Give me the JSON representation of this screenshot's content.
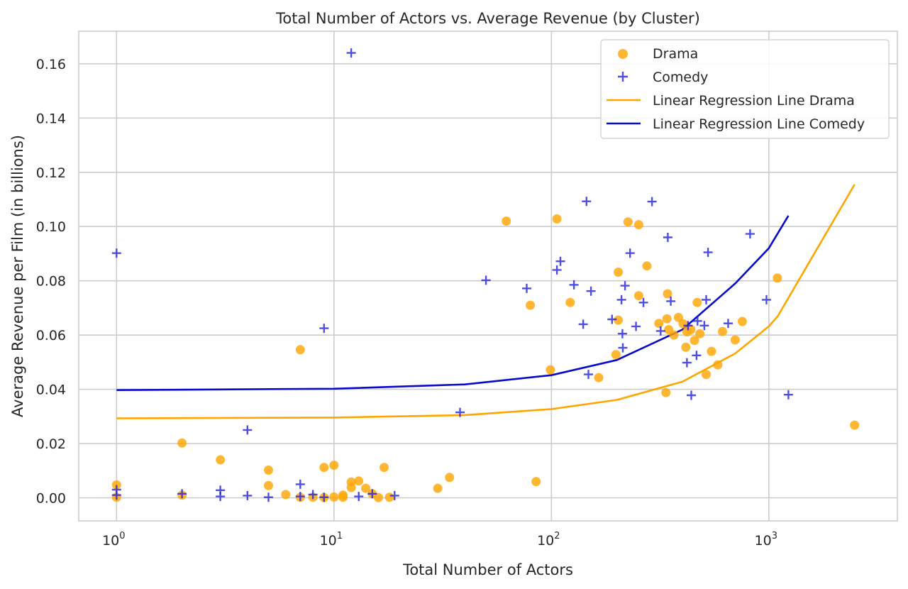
{
  "chart_data": {
    "type": "scatter",
    "title": "Total Number of Actors vs. Average Revenue (by Cluster)",
    "xlabel": "Total Number of Actors",
    "ylabel": "Average Revenue per Film (in billions)",
    "xscale": "log",
    "xlim": [
      0.67,
      3900
    ],
    "ylim": [
      -0.0085,
      0.172
    ],
    "grid": true,
    "legend_position": "top-right",
    "x_ticks": [
      {
        "value": 1,
        "base": "10",
        "exp": "0"
      },
      {
        "value": 10,
        "base": "10",
        "exp": "1"
      },
      {
        "value": 100,
        "base": "10",
        "exp": "2"
      },
      {
        "value": 1000,
        "base": "10",
        "exp": "3"
      }
    ],
    "y_ticks": [
      {
        "value": 0.0,
        "label": "0.00"
      },
      {
        "value": 0.02,
        "label": "0.02"
      },
      {
        "value": 0.04,
        "label": "0.04"
      },
      {
        "value": 0.06,
        "label": "0.06"
      },
      {
        "value": 0.08,
        "label": "0.08"
      },
      {
        "value": 0.1,
        "label": "0.10"
      },
      {
        "value": 0.12,
        "label": "0.12"
      },
      {
        "value": 0.14,
        "label": "0.14"
      },
      {
        "value": 0.16,
        "label": "0.16"
      }
    ],
    "series": [
      {
        "name": "Drama",
        "marker": "circle",
        "color": "#FFA500",
        "points": [
          [
            1,
            0.0048
          ],
          [
            1,
            0.0002
          ],
          [
            2,
            0.0202
          ],
          [
            2,
            0.001
          ],
          [
            3,
            0.014
          ],
          [
            5,
            0.0102
          ],
          [
            5,
            0.0045
          ],
          [
            6,
            0.0012
          ],
          [
            7,
            0.0546
          ],
          [
            7,
            0.0002
          ],
          [
            8,
            0.0002
          ],
          [
            9,
            0.0112
          ],
          [
            9,
            0.0001
          ],
          [
            10,
            0.012
          ],
          [
            10,
            0.0003
          ],
          [
            11,
            0.001
          ],
          [
            11,
            0.0002
          ],
          [
            12,
            0.0058
          ],
          [
            12,
            0.0038
          ],
          [
            13,
            0.0062
          ],
          [
            14,
            0.0035
          ],
          [
            15,
            0.0015
          ],
          [
            16,
            0.0001
          ],
          [
            17,
            0.0112
          ],
          [
            18,
            0.0002
          ],
          [
            30,
            0.0035
          ],
          [
            34,
            0.0075
          ],
          [
            62,
            0.102
          ],
          [
            80,
            0.071
          ],
          [
            85,
            0.006
          ],
          [
            99,
            0.0472
          ],
          [
            106,
            0.1028
          ],
          [
            122,
            0.072
          ],
          [
            165,
            0.0443
          ],
          [
            198,
            0.0528
          ],
          [
            203,
            0.0832
          ],
          [
            203,
            0.0655
          ],
          [
            225,
            0.1017
          ],
          [
            252,
            0.1007
          ],
          [
            252,
            0.0745
          ],
          [
            275,
            0.0855
          ],
          [
            312,
            0.0643
          ],
          [
            336,
            0.0388
          ],
          [
            340,
            0.066
          ],
          [
            342,
            0.0752
          ],
          [
            346,
            0.062
          ],
          [
            366,
            0.06
          ],
          [
            384,
            0.0665
          ],
          [
            403,
            0.0642
          ],
          [
            415,
            0.0555
          ],
          [
            420,
            0.0612
          ],
          [
            438,
            0.062
          ],
          [
            455,
            0.058
          ],
          [
            468,
            0.072
          ],
          [
            482,
            0.0605
          ],
          [
            515,
            0.0455
          ],
          [
            545,
            0.054
          ],
          [
            582,
            0.049
          ],
          [
            612,
            0.0613
          ],
          [
            700,
            0.0582
          ],
          [
            755,
            0.065
          ],
          [
            1095,
            0.081
          ],
          [
            2480,
            0.0268
          ]
        ]
      },
      {
        "name": "Comedy",
        "marker": "plus",
        "color": "#2222DD",
        "points": [
          [
            1,
            0.0902
          ],
          [
            1,
            0.003
          ],
          [
            1,
            0.001
          ],
          [
            2,
            0.0015
          ],
          [
            3,
            0.0028
          ],
          [
            3,
            0.0005
          ],
          [
            4,
            0.025
          ],
          [
            4,
            0.0008
          ],
          [
            5,
            0.0002
          ],
          [
            7,
            0.005
          ],
          [
            7,
            0.0005
          ],
          [
            8,
            0.0012
          ],
          [
            9,
            0.0625
          ],
          [
            9,
            0.0002
          ],
          [
            12,
            0.164
          ],
          [
            13,
            0.0005
          ],
          [
            15,
            0.0015
          ],
          [
            19,
            0.0008
          ],
          [
            38,
            0.0315
          ],
          [
            50,
            0.0802
          ],
          [
            77,
            0.0772
          ],
          [
            106,
            0.084
          ],
          [
            110,
            0.0872
          ],
          [
            127,
            0.0785
          ],
          [
            140,
            0.064
          ],
          [
            145,
            0.1093
          ],
          [
            148,
            0.0455
          ],
          [
            152,
            0.0762
          ],
          [
            190,
            0.0658
          ],
          [
            210,
            0.073
          ],
          [
            212,
            0.0605
          ],
          [
            213,
            0.0553
          ],
          [
            218,
            0.0782
          ],
          [
            230,
            0.0902
          ],
          [
            245,
            0.0632
          ],
          [
            265,
            0.072
          ],
          [
            290,
            0.1092
          ],
          [
            318,
            0.0615
          ],
          [
            343,
            0.096
          ],
          [
            354,
            0.0725
          ],
          [
            420,
            0.0498
          ],
          [
            425,
            0.0635
          ],
          [
            440,
            0.0378
          ],
          [
            465,
            0.0525
          ],
          [
            470,
            0.0652
          ],
          [
            505,
            0.0635
          ],
          [
            515,
            0.073
          ],
          [
            525,
            0.0905
          ],
          [
            650,
            0.0643
          ],
          [
            820,
            0.0973
          ],
          [
            975,
            0.073
          ],
          [
            1230,
            0.038
          ]
        ]
      },
      {
        "name": "Linear Regression Line Drama",
        "marker": "line",
        "color": "#FFA500",
        "points": [
          [
            1,
            0.0293
          ],
          [
            10,
            0.0296
          ],
          [
            40,
            0.0305
          ],
          [
            100,
            0.0327
          ],
          [
            200,
            0.0361
          ],
          [
            400,
            0.0428
          ],
          [
            700,
            0.0532
          ],
          [
            1000,
            0.0632
          ],
          [
            1100,
            0.067
          ],
          [
            2480,
            0.1155
          ]
        ]
      },
      {
        "name": "Linear Regression Line Comedy",
        "marker": "line",
        "color": "#0A0ACC",
        "points": [
          [
            1,
            0.0397
          ],
          [
            10,
            0.0402
          ],
          [
            40,
            0.0418
          ],
          [
            100,
            0.0452
          ],
          [
            200,
            0.0508
          ],
          [
            400,
            0.062
          ],
          [
            700,
            0.079
          ],
          [
            1000,
            0.092
          ],
          [
            1230,
            0.104
          ]
        ]
      }
    ]
  }
}
